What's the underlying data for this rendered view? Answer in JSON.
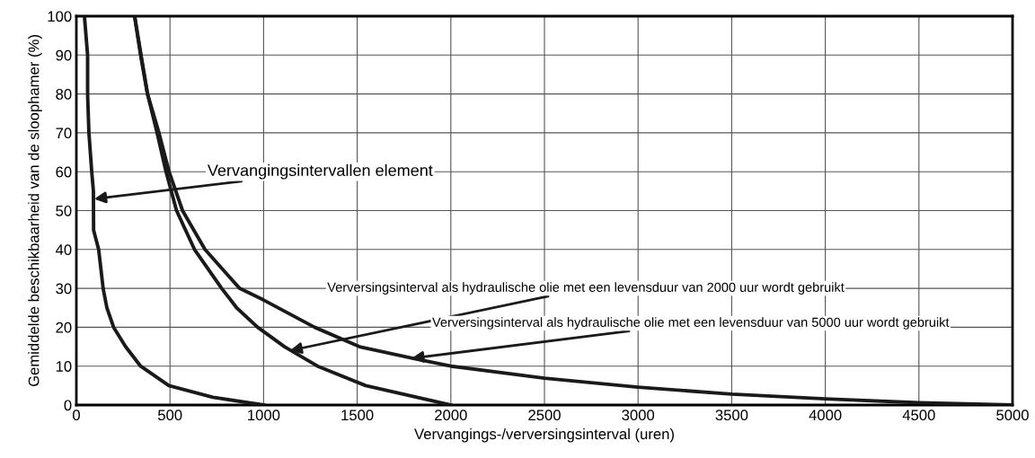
{
  "chart_data": {
    "type": "line",
    "xlabel": "Vervangings-/verversingsinterval (uren)",
    "ylabel": "Gemiddelde beschikbaarheid van de sloophamer (%)",
    "series": [
      {
        "color": "#1a1a1a",
        "x": [
          43,
          60,
          60,
          67,
          82,
          91,
          92,
          119,
          143,
          163,
          199,
          263,
          343,
          494,
          729,
          1000
        ],
        "values": [
          100,
          90,
          80,
          70,
          60,
          55,
          45,
          40,
          30,
          25,
          20,
          15,
          10,
          5,
          2,
          0
        ]
      },
      {
        "color": "#1a1a1a",
        "x": [
          311,
          343,
          380,
          431,
          479,
          535,
          631,
          776,
          856,
          968,
          1112,
          1288,
          1545,
          2000
        ],
        "values": [
          100,
          90,
          80,
          70,
          60,
          50,
          40,
          30,
          25,
          20,
          15,
          10,
          5,
          0
        ]
      },
      {
        "color": "#1a1a1a",
        "x": [
          311,
          380,
          441,
          495,
          567,
          687,
          872,
          1000,
          1272,
          1512,
          1800,
          2000,
          2500,
          3000,
          3500,
          4000,
          4500,
          5000
        ],
        "values": [
          100,
          80,
          70,
          60,
          50,
          40,
          30,
          27,
          20,
          15,
          12,
          10,
          6.9,
          4.6,
          2.8,
          1.6,
          0.6,
          0
        ]
      }
    ],
    "annotations": [
      {
        "text": "Vervangingsintervallen element",
        "x": 95,
        "y": 53
      },
      {
        "text": "Verversingsinterval als hydraulische olie met een levensduur van 2000 uur wordt gebruikt",
        "x": 1140,
        "y": 14
      },
      {
        "text": "Verversingsinterval als hydraulische olie met een levensduur van 5000 uur wordt gebruikt",
        "x": 1790,
        "y": 12
      }
    ],
    "xlim": [
      0,
      5000
    ],
    "xticks": [
      0,
      500,
      1000,
      1500,
      2000,
      2500,
      3000,
      3500,
      4000,
      4500,
      5000
    ],
    "ylim": [
      0,
      100
    ],
    "yticks": [
      0,
      10,
      20,
      30,
      40,
      50,
      60,
      70,
      80,
      90,
      100
    ],
    "grid": true,
    "legend": false,
    "marker": "none",
    "line_style": "solid"
  }
}
